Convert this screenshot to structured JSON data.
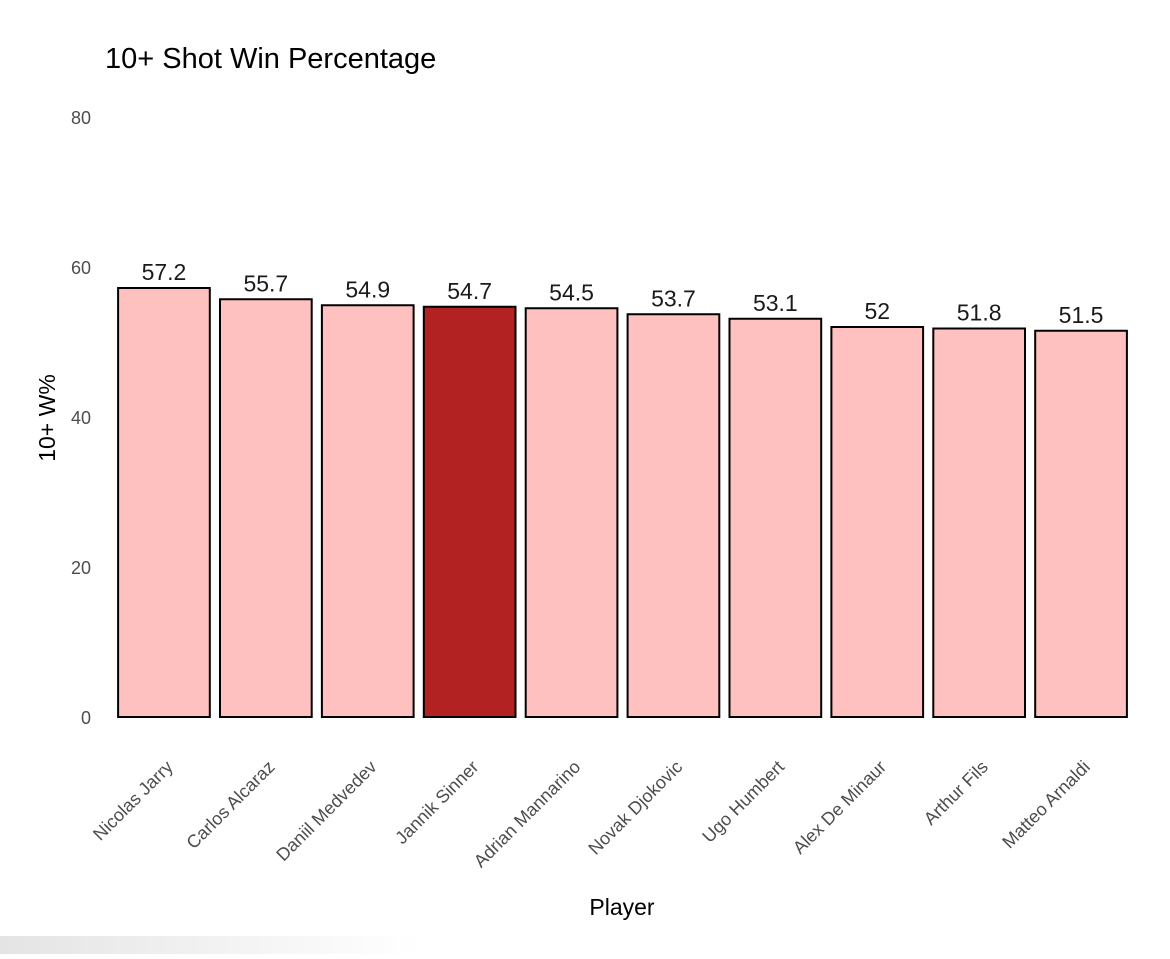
{
  "chart_data": {
    "type": "bar",
    "title": "10+ Shot Win Percentage",
    "xlabel": "Player",
    "ylabel": "10+ W%",
    "ylim": [
      0,
      80
    ],
    "yticks": [
      0,
      20,
      40,
      60,
      80
    ],
    "grid": false,
    "legend": "none",
    "categories": [
      "Nicolas Jarry",
      "Carlos Alcaraz",
      "Daniil Medvedev",
      "Jannik Sinner",
      "Adrian Mannarino",
      "Novak Djokovic",
      "Ugo Humbert",
      "Alex De Minaur",
      "Arthur Fils",
      "Matteo Arnaldi"
    ],
    "values": [
      57.2,
      55.7,
      54.9,
      54.7,
      54.5,
      53.7,
      53.1,
      52,
      51.8,
      51.5
    ],
    "data_labels": [
      "57.2",
      "55.7",
      "54.9",
      "54.7",
      "54.5",
      "53.7",
      "53.1",
      "52",
      "51.8",
      "51.5"
    ],
    "highlighted_category": "Jannik Sinner",
    "colors": {
      "bar": "#ffc0c0",
      "highlight": "#b22222",
      "bar_outline": "#000000"
    }
  }
}
